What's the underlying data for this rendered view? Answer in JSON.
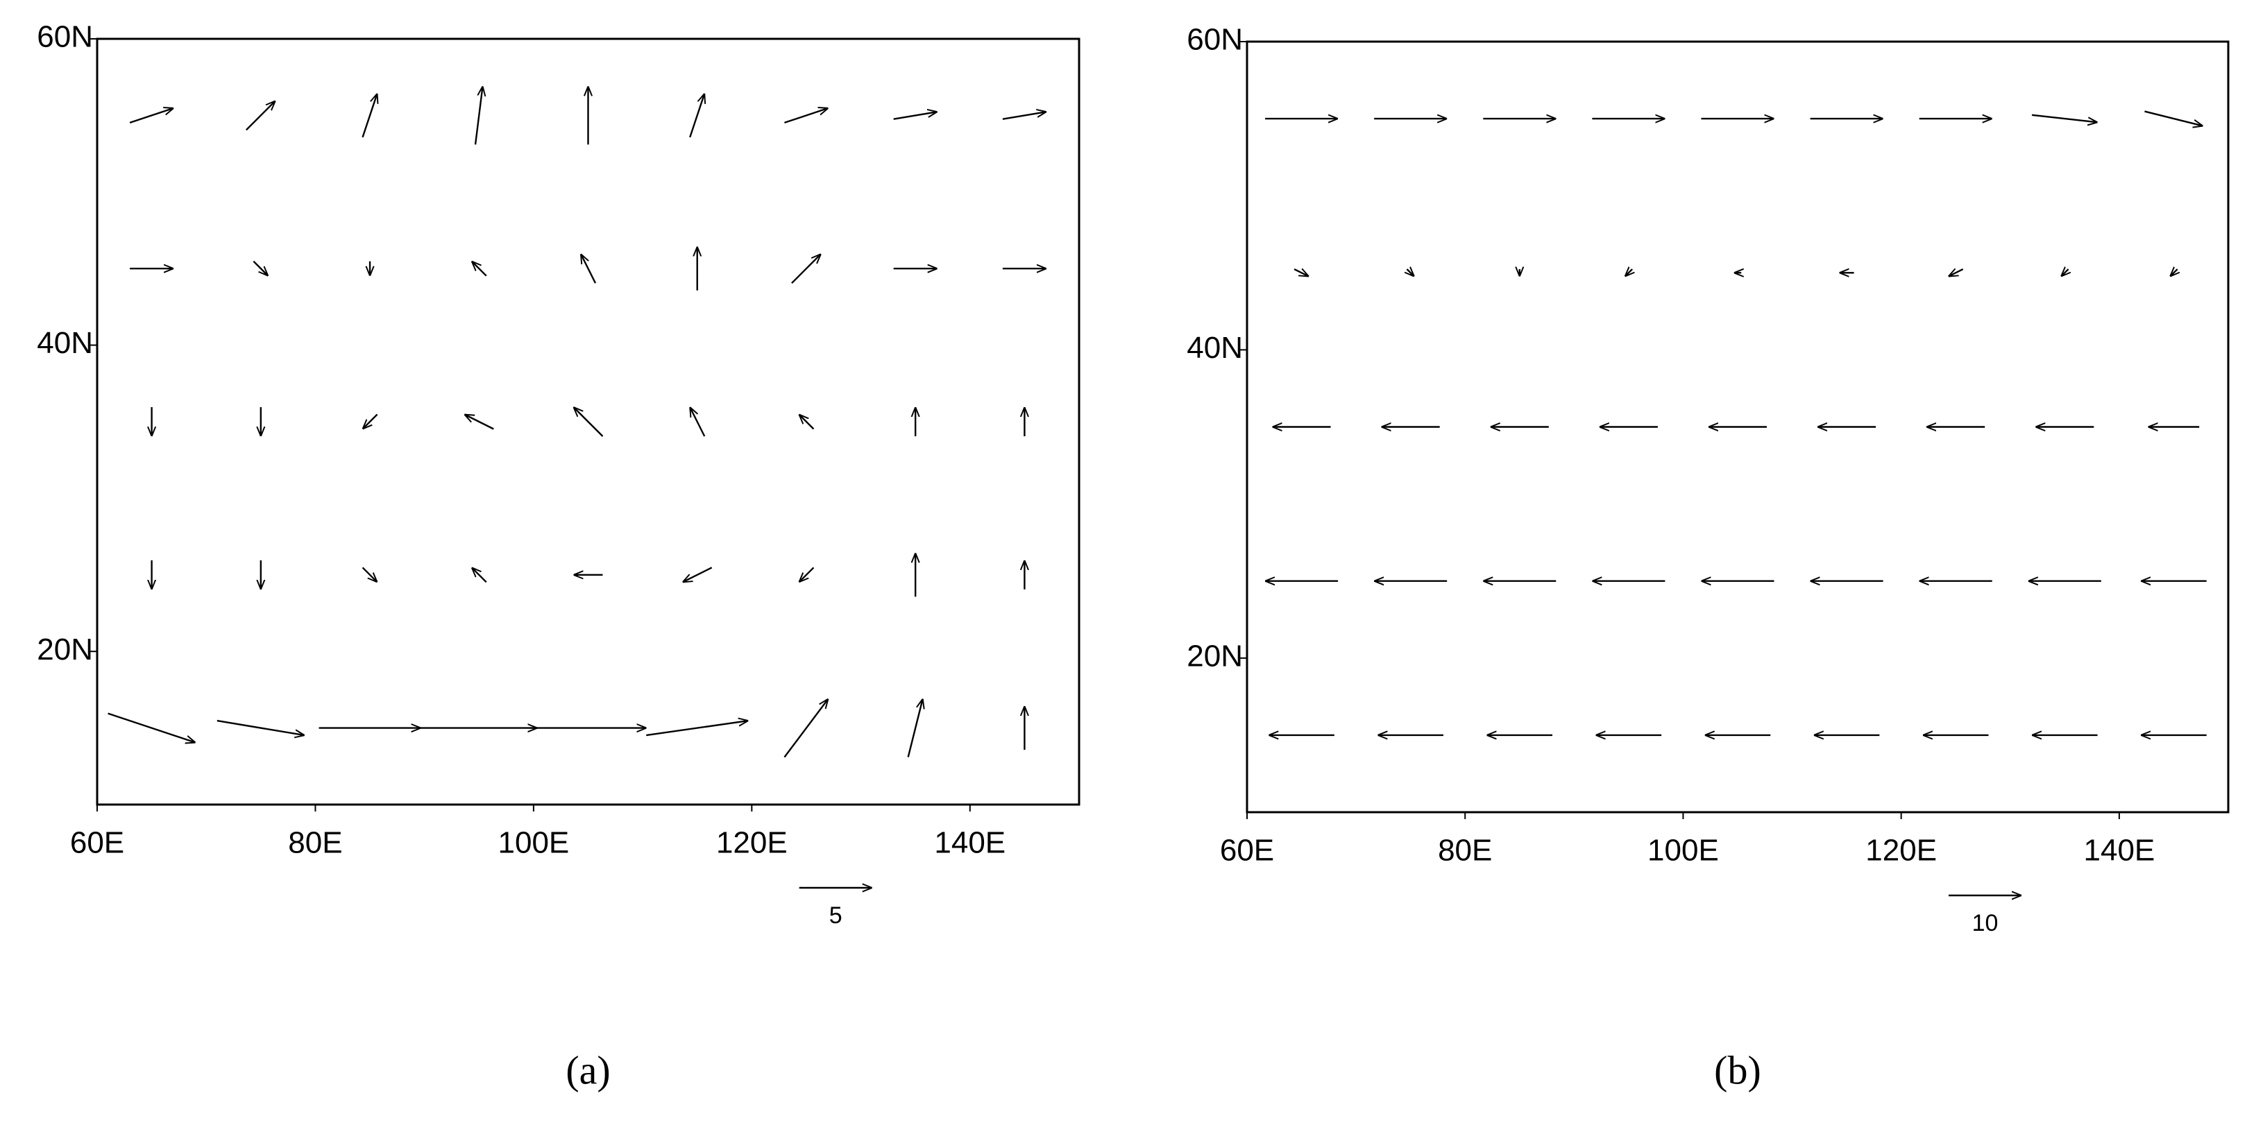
{
  "panels": [
    {
      "label": "(a)",
      "xlim": [
        60,
        150
      ],
      "ylim": [
        10,
        60
      ],
      "xticks": [
        {
          "value": 60,
          "label": "60E"
        },
        {
          "value": 80,
          "label": "80E"
        },
        {
          "value": 100,
          "label": "100E"
        },
        {
          "value": 120,
          "label": "120E"
        },
        {
          "value": 140,
          "label": "140E"
        }
      ],
      "yticks": [
        {
          "value": 20,
          "label": "20N"
        },
        {
          "value": 40,
          "label": "40N"
        },
        {
          "value": 60,
          "label": "60N"
        }
      ],
      "reference_vector": 5,
      "lons": [
        65,
        75,
        85,
        95,
        105,
        115,
        125,
        135,
        145
      ],
      "lats": [
        55,
        45,
        35,
        25,
        15
      ],
      "u": [
        [
          3,
          2,
          1,
          0.5,
          0,
          1,
          3,
          3,
          3
        ],
        [
          3,
          1,
          0,
          -1,
          -1,
          0,
          2,
          3,
          3
        ],
        [
          0,
          0,
          -1,
          -2,
          -2,
          -1,
          -1,
          0,
          0
        ],
        [
          0,
          0,
          1,
          -1,
          -2,
          -2,
          -1,
          0,
          0
        ],
        [
          6,
          6,
          7,
          8,
          8,
          7,
          3,
          1,
          0
        ]
      ],
      "v": [
        [
          1,
          2,
          3,
          4,
          4,
          3,
          1,
          0.5,
          0.5
        ],
        [
          0,
          -1,
          -1,
          1,
          2,
          3,
          2,
          0,
          0
        ],
        [
          -2,
          -2,
          -1,
          1,
          2,
          2,
          1,
          2,
          2
        ],
        [
          -2,
          -2,
          -1,
          1,
          0,
          -1,
          -1,
          3,
          2
        ],
        [
          -2,
          -1,
          0,
          0,
          0,
          1,
          4,
          4,
          3
        ]
      ]
    },
    {
      "label": "(b)",
      "xlim": [
        60,
        150
      ],
      "ylim": [
        10,
        60
      ],
      "xticks": [
        {
          "value": 60,
          "label": "60E"
        },
        {
          "value": 80,
          "label": "80E"
        },
        {
          "value": 100,
          "label": "100E"
        },
        {
          "value": 120,
          "label": "120E"
        },
        {
          "value": 140,
          "label": "140E"
        }
      ],
      "yticks": [
        {
          "value": 20,
          "label": "20N"
        },
        {
          "value": 40,
          "label": "40N"
        },
        {
          "value": 60,
          "label": "60N"
        }
      ],
      "reference_vector": 10,
      "lons": [
        65,
        75,
        85,
        95,
        105,
        115,
        125,
        135,
        145
      ],
      "lats": [
        55,
        45,
        35,
        25,
        15
      ],
      "u": [
        [
          10,
          10,
          10,
          10,
          10,
          10,
          10,
          9,
          8
        ],
        [
          2,
          1,
          0,
          -1,
          -1,
          -2,
          -2,
          -1,
          -1
        ],
        [
          -8,
          -8,
          -8,
          -8,
          -8,
          -8,
          -8,
          -8,
          -7
        ],
        [
          -10,
          -10,
          -10,
          -10,
          -10,
          -10,
          -10,
          -10,
          -9
        ],
        [
          -9,
          -9,
          -9,
          -9,
          -9,
          -9,
          -9,
          -9,
          -9
        ]
      ],
      "v": [
        [
          0,
          0,
          0,
          0,
          0,
          0,
          0,
          -1,
          -2
        ],
        [
          -1,
          -1,
          -1,
          -1,
          0,
          0,
          -1,
          -1,
          -1
        ],
        [
          0,
          0,
          0,
          0,
          0,
          0,
          0,
          0,
          0
        ],
        [
          0,
          0,
          0,
          0,
          0,
          0,
          0,
          0,
          0
        ],
        [
          0,
          0,
          0,
          0,
          0,
          0,
          0,
          0,
          0
        ]
      ]
    }
  ]
}
